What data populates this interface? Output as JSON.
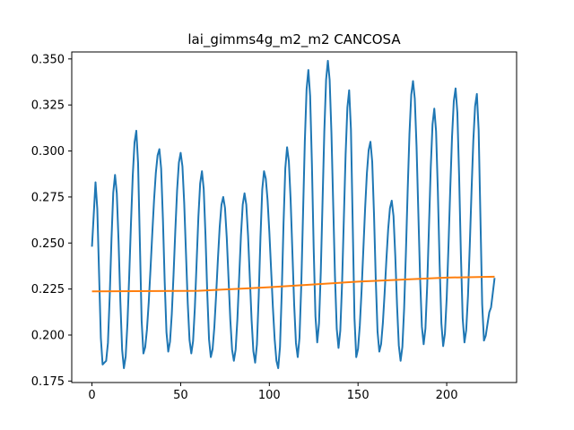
{
  "chart_data": {
    "type": "line",
    "title": "lai_gimms4g_m2_m2 CANCOSA",
    "xlabel": "",
    "ylabel": "",
    "xlim": [
      -11.4,
      239.4
    ],
    "ylim": [
      0.1742,
      0.3538
    ],
    "xticks": [
      0,
      50,
      100,
      150,
      200
    ],
    "xtick_labels": [
      "0",
      "50",
      "100",
      "150",
      "200"
    ],
    "yticks": [
      0.175,
      0.2,
      0.225,
      0.25,
      0.275,
      0.3,
      0.325,
      0.35
    ],
    "ytick_labels": [
      "0.175",
      "0.200",
      "0.225",
      "0.250",
      "0.275",
      "0.300",
      "0.325",
      "0.350"
    ],
    "grid": false,
    "legend": "none",
    "series": [
      {
        "color": "#1f77b4",
        "peaks": [
          [
            0,
            0.248
          ],
          [
            2,
            0.283
          ],
          [
            13,
            0.287
          ],
          [
            25,
            0.311
          ],
          [
            38,
            0.301
          ],
          [
            50,
            0.299
          ],
          [
            62,
            0.289
          ],
          [
            74,
            0.275
          ],
          [
            86,
            0.277
          ],
          [
            97,
            0.289
          ],
          [
            110,
            0.302
          ],
          [
            122,
            0.344
          ],
          [
            133,
            0.349
          ],
          [
            145,
            0.333
          ],
          [
            157,
            0.305
          ],
          [
            169,
            0.273
          ],
          [
            181,
            0.338
          ],
          [
            193,
            0.323
          ],
          [
            205,
            0.334
          ],
          [
            217,
            0.331
          ],
          [
            227,
            0.231
          ]
        ],
        "troughs": [
          [
            6,
            0.184
          ],
          [
            8,
            0.186
          ],
          [
            18,
            0.182
          ],
          [
            29,
            0.19
          ],
          [
            43,
            0.191
          ],
          [
            56,
            0.19
          ],
          [
            67,
            0.188
          ],
          [
            80,
            0.186
          ],
          [
            92,
            0.185
          ],
          [
            105,
            0.182
          ],
          [
            116,
            0.188
          ],
          [
            127,
            0.196
          ],
          [
            139,
            0.193
          ],
          [
            149,
            0.188
          ],
          [
            162,
            0.191
          ],
          [
            174,
            0.186
          ],
          [
            187,
            0.195
          ],
          [
            198,
            0.194
          ],
          [
            210,
            0.196
          ],
          [
            221,
            0.197
          ],
          [
            225,
            0.215
          ]
        ]
      },
      {
        "color": "#ff7f0e",
        "x": [
          0,
          60,
          100,
          150,
          200,
          227
        ],
        "y": [
          0.2237,
          0.224,
          0.226,
          0.229,
          0.2312,
          0.2317
        ]
      }
    ]
  }
}
